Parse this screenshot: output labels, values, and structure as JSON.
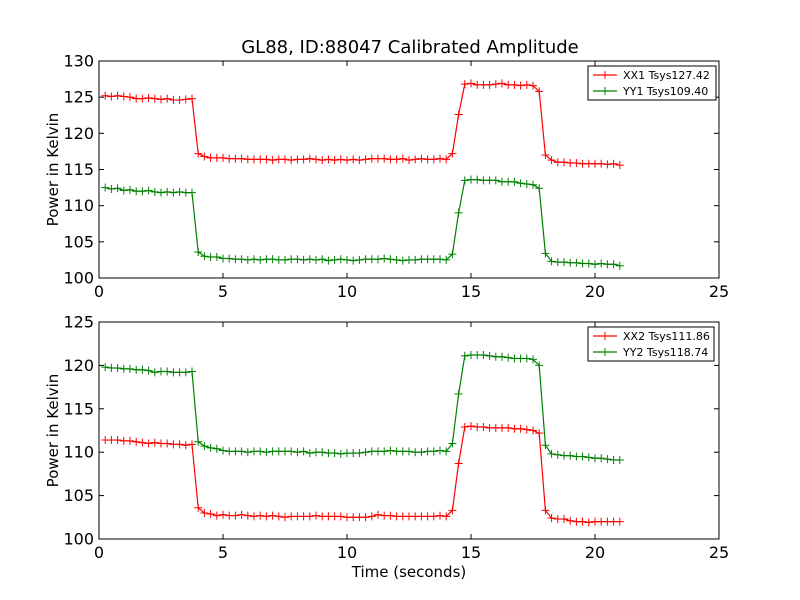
{
  "title": "GL88, ID:88047 Calibrated Amplitude",
  "colors": {
    "xx": "#ff0000",
    "yy": "#008000",
    "frame": "#000000",
    "background": "#ffffff"
  },
  "chart_data": [
    {
      "type": "line",
      "xlabel": "",
      "ylabel": "Power in Kelvin",
      "xlim": [
        0,
        25
      ],
      "ylim": [
        100,
        130
      ],
      "xticks": [
        "0",
        "5",
        "10",
        "15",
        "20",
        "25"
      ],
      "yticks": [
        "100",
        "105",
        "110",
        "115",
        "120",
        "125",
        "130"
      ],
      "grid": false,
      "legend_position": "top-right",
      "marker": "+",
      "series": [
        {
          "name": "XX1 Tsys127.42",
          "color": "#ff0000",
          "x": [
            0.25,
            0.5,
            0.75,
            1.0,
            1.25,
            1.5,
            1.75,
            2.0,
            2.25,
            2.5,
            2.75,
            3.0,
            3.25,
            3.5,
            3.75,
            4.0,
            4.25,
            4.5,
            4.75,
            5.0,
            5.25,
            5.5,
            5.75,
            6.0,
            6.25,
            6.5,
            6.75,
            7.0,
            7.25,
            7.5,
            7.75,
            8.0,
            8.25,
            8.5,
            8.75,
            9.0,
            9.25,
            9.5,
            9.75,
            10.0,
            10.25,
            10.5,
            10.75,
            11.0,
            11.25,
            11.5,
            11.75,
            12.0,
            12.25,
            12.5,
            12.75,
            13.0,
            13.25,
            13.5,
            13.75,
            14.0,
            14.25,
            14.5,
            14.75,
            15.0,
            15.25,
            15.5,
            15.75,
            16.0,
            16.25,
            16.5,
            16.75,
            17.0,
            17.25,
            17.5,
            17.75,
            18.0,
            18.25,
            18.5,
            18.75,
            19.0,
            19.25,
            19.5,
            19.75,
            20.0,
            20.25,
            20.5,
            20.75,
            21.0
          ],
          "y": [
            125.2,
            125.1,
            125.2,
            125.1,
            125.0,
            124.8,
            124.8,
            124.9,
            124.8,
            124.7,
            124.8,
            124.6,
            124.6,
            124.7,
            124.8,
            117.2,
            116.8,
            116.6,
            116.6,
            116.6,
            116.5,
            116.5,
            116.5,
            116.4,
            116.4,
            116.4,
            116.4,
            116.3,
            116.4,
            116.4,
            116.3,
            116.4,
            116.4,
            116.5,
            116.4,
            116.3,
            116.4,
            116.3,
            116.4,
            116.3,
            116.4,
            116.3,
            116.4,
            116.5,
            116.5,
            116.5,
            116.4,
            116.4,
            116.5,
            116.3,
            116.4,
            116.5,
            116.4,
            116.4,
            116.5,
            116.4,
            117.2,
            122.6,
            126.8,
            126.9,
            126.7,
            126.7,
            126.7,
            126.8,
            126.9,
            126.7,
            126.7,
            126.6,
            126.7,
            126.6,
            125.8,
            117.0,
            116.3,
            116.0,
            116.0,
            115.9,
            115.9,
            115.8,
            115.8,
            115.8,
            115.8,
            115.7,
            115.8,
            115.6
          ]
        },
        {
          "name": "YY1 Tsys109.40",
          "color": "#008000",
          "x": [
            0.25,
            0.5,
            0.75,
            1.0,
            1.25,
            1.5,
            1.75,
            2.0,
            2.25,
            2.5,
            2.75,
            3.0,
            3.25,
            3.5,
            3.75,
            4.0,
            4.25,
            4.5,
            4.75,
            5.0,
            5.25,
            5.5,
            5.75,
            6.0,
            6.25,
            6.5,
            6.75,
            7.0,
            7.25,
            7.5,
            7.75,
            8.0,
            8.25,
            8.5,
            8.75,
            9.0,
            9.25,
            9.5,
            9.75,
            10.0,
            10.25,
            10.5,
            10.75,
            11.0,
            11.25,
            11.5,
            11.75,
            12.0,
            12.25,
            12.5,
            12.75,
            13.0,
            13.25,
            13.5,
            13.75,
            14.0,
            14.25,
            14.5,
            14.75,
            15.0,
            15.25,
            15.5,
            15.75,
            16.0,
            16.25,
            16.5,
            16.75,
            17.0,
            17.25,
            17.5,
            17.75,
            18.0,
            18.25,
            18.5,
            18.75,
            19.0,
            19.25,
            19.5,
            19.75,
            20.0,
            20.25,
            20.5,
            20.75,
            21.0
          ],
          "y": [
            112.5,
            112.3,
            112.4,
            112.1,
            112.2,
            112.0,
            112.0,
            112.1,
            111.9,
            111.8,
            111.9,
            111.8,
            111.9,
            111.8,
            111.8,
            103.6,
            103.0,
            102.9,
            102.9,
            102.7,
            102.7,
            102.6,
            102.6,
            102.5,
            102.6,
            102.5,
            102.6,
            102.6,
            102.5,
            102.5,
            102.6,
            102.6,
            102.5,
            102.6,
            102.5,
            102.6,
            102.4,
            102.5,
            102.6,
            102.5,
            102.4,
            102.5,
            102.6,
            102.6,
            102.6,
            102.7,
            102.6,
            102.5,
            102.4,
            102.5,
            102.5,
            102.6,
            102.6,
            102.6,
            102.6,
            102.5,
            103.3,
            109.0,
            113.5,
            113.6,
            113.6,
            113.5,
            113.5,
            113.5,
            113.3,
            113.3,
            113.3,
            113.1,
            113.0,
            112.9,
            112.4,
            103.4,
            102.3,
            102.2,
            102.2,
            102.1,
            102.1,
            102.0,
            102.0,
            101.9,
            102.0,
            101.9,
            101.9,
            101.7
          ]
        }
      ]
    },
    {
      "type": "line",
      "xlabel": "Time (seconds)",
      "ylabel": "Power in Kelvin",
      "xlim": [
        0,
        25
      ],
      "ylim": [
        100,
        125
      ],
      "xticks": [
        "0",
        "5",
        "10",
        "15",
        "20",
        "25"
      ],
      "yticks": [
        "100",
        "105",
        "110",
        "115",
        "120",
        "125"
      ],
      "grid": false,
      "legend_position": "top-right",
      "marker": "+",
      "series": [
        {
          "name": "XX2 Tsys111.86",
          "color": "#ff0000",
          "x": [
            0.25,
            0.5,
            0.75,
            1.0,
            1.25,
            1.5,
            1.75,
            2.0,
            2.25,
            2.5,
            2.75,
            3.0,
            3.25,
            3.5,
            3.75,
            4.0,
            4.25,
            4.5,
            4.75,
            5.0,
            5.25,
            5.5,
            5.75,
            6.0,
            6.25,
            6.5,
            6.75,
            7.0,
            7.25,
            7.5,
            7.75,
            8.0,
            8.25,
            8.5,
            8.75,
            9.0,
            9.25,
            9.5,
            9.75,
            10.0,
            10.25,
            10.5,
            10.75,
            11.0,
            11.25,
            11.5,
            11.75,
            12.0,
            12.25,
            12.5,
            12.75,
            13.0,
            13.25,
            13.5,
            13.75,
            14.0,
            14.25,
            14.5,
            14.75,
            15.0,
            15.25,
            15.5,
            15.75,
            16.0,
            16.25,
            16.5,
            16.75,
            17.0,
            17.25,
            17.5,
            17.75,
            18.0,
            18.25,
            18.5,
            18.75,
            19.0,
            19.25,
            19.5,
            19.75,
            20.0,
            20.25,
            20.5,
            20.75,
            21.0
          ],
          "y": [
            111.4,
            111.4,
            111.4,
            111.3,
            111.3,
            111.2,
            111.1,
            111.0,
            111.1,
            111.0,
            111.0,
            110.9,
            110.9,
            110.8,
            110.9,
            103.6,
            103.0,
            102.9,
            102.7,
            102.8,
            102.7,
            102.7,
            102.8,
            102.7,
            102.6,
            102.7,
            102.6,
            102.7,
            102.6,
            102.5,
            102.6,
            102.6,
            102.6,
            102.6,
            102.7,
            102.6,
            102.6,
            102.6,
            102.6,
            102.5,
            102.5,
            102.5,
            102.5,
            102.6,
            102.8,
            102.7,
            102.7,
            102.6,
            102.6,
            102.6,
            102.6,
            102.6,
            102.6,
            102.6,
            102.7,
            102.6,
            103.3,
            108.7,
            112.9,
            113.0,
            112.9,
            112.9,
            112.8,
            112.8,
            112.8,
            112.8,
            112.7,
            112.7,
            112.6,
            112.5,
            112.2,
            103.3,
            102.4,
            102.3,
            102.3,
            102.1,
            102.0,
            102.0,
            101.9,
            102.0,
            102.0,
            102.0,
            102.0,
            102.0
          ]
        },
        {
          "name": "YY2 Tsys118.74",
          "color": "#008000",
          "x": [
            0.25,
            0.5,
            0.75,
            1.0,
            1.25,
            1.5,
            1.75,
            2.0,
            2.25,
            2.5,
            2.75,
            3.0,
            3.25,
            3.5,
            3.75,
            4.0,
            4.25,
            4.5,
            4.75,
            5.0,
            5.25,
            5.5,
            5.75,
            6.0,
            6.25,
            6.5,
            6.75,
            7.0,
            7.25,
            7.5,
            7.75,
            8.0,
            8.25,
            8.5,
            8.75,
            9.0,
            9.25,
            9.5,
            9.75,
            10.0,
            10.25,
            10.5,
            10.75,
            11.0,
            11.25,
            11.5,
            11.75,
            12.0,
            12.25,
            12.5,
            12.75,
            13.0,
            13.25,
            13.5,
            13.75,
            14.0,
            14.25,
            14.5,
            14.75,
            15.0,
            15.25,
            15.5,
            15.75,
            16.0,
            16.25,
            16.5,
            16.75,
            17.0,
            17.25,
            17.5,
            17.75,
            18.0,
            18.25,
            18.5,
            18.75,
            19.0,
            19.25,
            19.5,
            19.75,
            20.0,
            20.25,
            20.5,
            20.75,
            21.0
          ],
          "y": [
            119.8,
            119.7,
            119.7,
            119.6,
            119.6,
            119.5,
            119.5,
            119.4,
            119.2,
            119.3,
            119.3,
            119.2,
            119.2,
            119.2,
            119.3,
            111.2,
            110.7,
            110.5,
            110.4,
            110.2,
            110.1,
            110.1,
            110.1,
            110.0,
            110.1,
            110.1,
            110.0,
            110.1,
            110.1,
            110.1,
            110.1,
            110.0,
            110.1,
            109.9,
            110.0,
            110.0,
            109.9,
            109.9,
            109.8,
            109.9,
            109.9,
            109.9,
            110.0,
            110.1,
            110.1,
            110.1,
            110.2,
            110.1,
            110.1,
            110.1,
            110.0,
            110.0,
            110.1,
            110.1,
            110.2,
            110.1,
            111.0,
            116.7,
            121.1,
            121.2,
            121.2,
            121.2,
            121.1,
            121.0,
            121.0,
            120.9,
            120.8,
            120.8,
            120.8,
            120.7,
            120.0,
            110.8,
            109.8,
            109.7,
            109.6,
            109.6,
            109.5,
            109.5,
            109.4,
            109.3,
            109.3,
            109.2,
            109.1,
            109.1
          ]
        }
      ]
    }
  ]
}
